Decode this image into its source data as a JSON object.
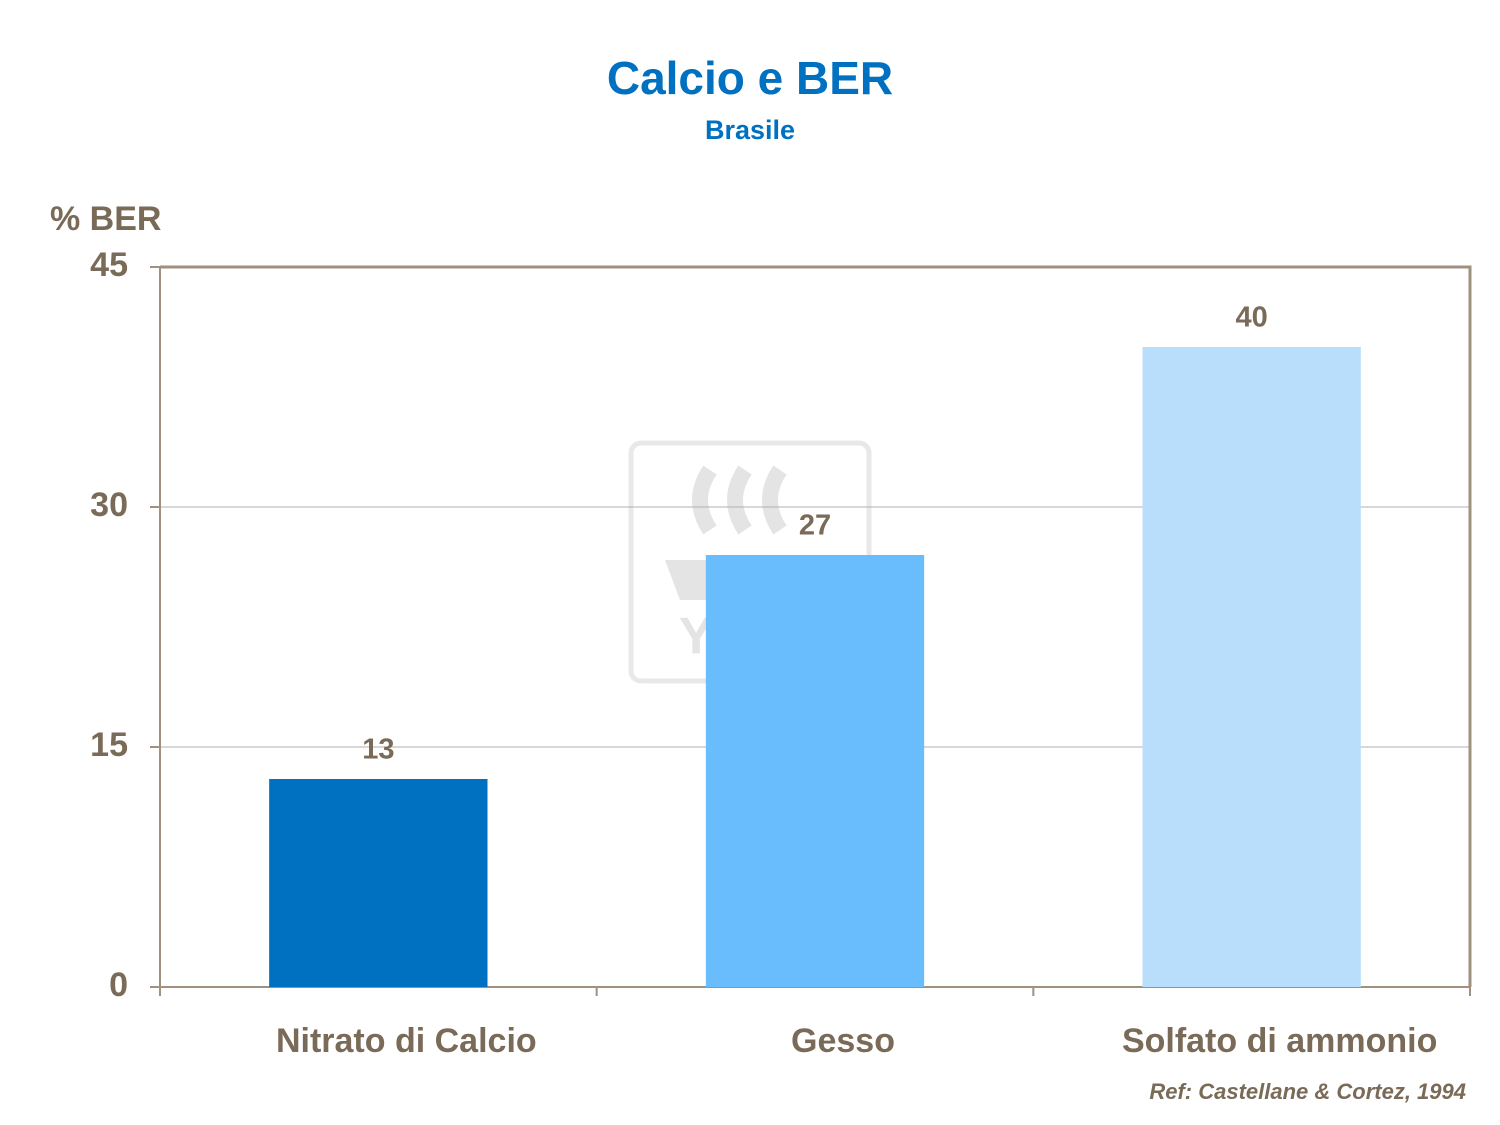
{
  "chart_data": {
    "type": "bar",
    "title": "Calcio e BER",
    "subtitle": "Brasile",
    "y_label": "% BER",
    "categories": [
      "Nitrato di Calcio",
      "Gesso",
      "Solfato di ammonio"
    ],
    "values": [
      13,
      27,
      40
    ],
    "colors": [
      "#0070c0",
      "#6abdfc",
      "#b8defc"
    ],
    "ylim": [
      0,
      45
    ],
    "yticks": [
      0,
      15,
      30,
      45
    ],
    "grid": true,
    "note": "Ref: Castellane  & Cortez, 1994",
    "watermark": "YARA"
  }
}
